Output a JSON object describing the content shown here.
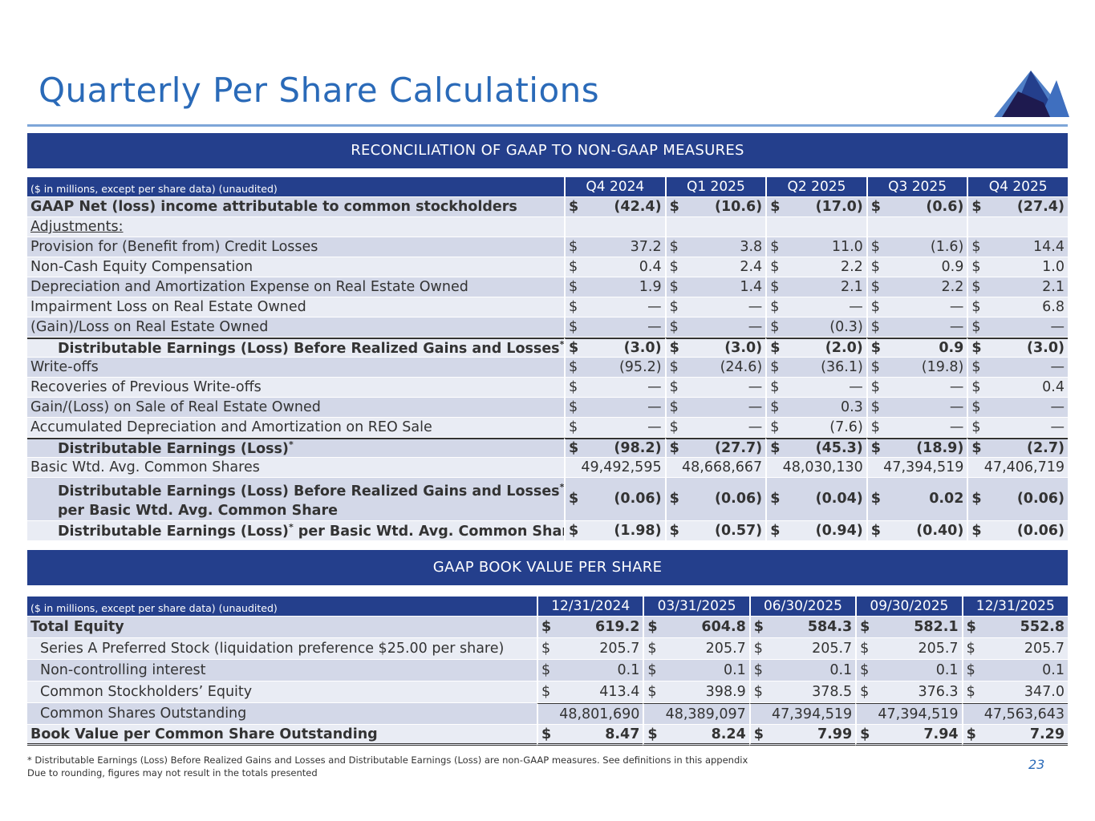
{
  "title": "Quarterly Per Share Calculations",
  "colors": {
    "title": "#2a6ab8",
    "band": "#243f8c",
    "row_dark": "#d3d8e8",
    "row_light": "#e9ecf4"
  },
  "section1": {
    "heading": "RECONCILIATION OF GAAP TO NON-GAAP MEASURES",
    "note": "($ in millions, except per share data) (unaudited)",
    "columns": [
      "Q4 2024",
      "Q1 2025",
      "Q2 2025",
      "Q3 2025",
      "Q4 2025"
    ],
    "rows": [
      {
        "label": "GAAP Net (loss) income attributable to common stockholders",
        "values": [
          "(42.4)",
          "(10.6)",
          "(17.0)",
          "(0.6)",
          "(27.4)"
        ],
        "bold": true
      },
      {
        "label": "Adjustments:",
        "values": [],
        "underline": true
      },
      {
        "label": "Provision for (Benefit from) Credit Losses",
        "values": [
          "37.2",
          "3.8",
          "11.0",
          "(1.6)",
          "14.4"
        ]
      },
      {
        "label": "Non-Cash Equity Compensation",
        "values": [
          "0.4",
          "2.4",
          "2.2",
          "0.9",
          "1.0"
        ]
      },
      {
        "label": "Depreciation and Amortization Expense on Real Estate Owned",
        "values": [
          "1.9",
          "1.4",
          "2.1",
          "2.2",
          "2.1"
        ]
      },
      {
        "label": "Impairment Loss on Real Estate Owned",
        "values": [
          "—",
          "—",
          "—",
          "—",
          "6.8"
        ]
      },
      {
        "label": "(Gain)/Loss on Real Estate Owned",
        "values": [
          "—",
          "—",
          "(0.3)",
          "—",
          "—"
        ]
      },
      {
        "label": "Distributable Earnings (Loss) Before Realized Gains and Losses",
        "sup": "*",
        "values": [
          "(3.0)",
          "(3.0)",
          "(2.0)",
          "0.9",
          "(3.0)"
        ],
        "bold": true,
        "indent": true,
        "top": true
      },
      {
        "label": "Write-offs",
        "values": [
          "(95.2)",
          "(24.6)",
          "(36.1)",
          "(19.8)",
          "—"
        ]
      },
      {
        "label": "Recoveries of Previous Write-offs",
        "values": [
          "—",
          "—",
          "—",
          "—",
          "0.4"
        ]
      },
      {
        "label": "Gain/(Loss) on Sale of Real Estate Owned",
        "values": [
          "—",
          "—",
          "0.3",
          "—",
          "—"
        ]
      },
      {
        "label": "Accumulated Depreciation and Amortization on REO Sale",
        "values": [
          "—",
          "—",
          "(7.6)",
          "—",
          "—"
        ]
      },
      {
        "label": "Distributable Earnings (Loss)",
        "sup": "*",
        "values": [
          "(98.2)",
          "(27.7)",
          "(45.3)",
          "(18.9)",
          "(2.7)"
        ],
        "bold": true,
        "indent": true,
        "top": true
      },
      {
        "label": "Basic Wtd. Avg. Common Shares",
        "values": [
          "49,492,595",
          "48,668,667",
          "48,030,130",
          "47,394,519",
          "47,406,719"
        ],
        "nodollar": true
      },
      {
        "label": "Distributable Earnings (Loss) Before Realized Gains and Losses",
        "sup": "*",
        "label2": "per Basic Wtd. Avg. Common Share",
        "values": [
          "(0.06)",
          "(0.06)",
          "(0.04)",
          "0.02",
          "(0.06)"
        ],
        "bold": true,
        "indent": true
      },
      {
        "label": "Distributable Earnings (Loss)",
        "sup": "*",
        "label_after": " per Basic Wtd. Avg. Common Share",
        "values": [
          "(1.98)",
          "(0.57)",
          "(0.94)",
          "(0.40)",
          "(0.06)"
        ],
        "bold": true,
        "indent": true
      }
    ]
  },
  "section2": {
    "heading": "GAAP BOOK VALUE PER SHARE",
    "note": "($ in millions, except per share data) (unaudited)",
    "columns": [
      "12/31/2024",
      "03/31/2025",
      "06/30/2025",
      "09/30/2025",
      "12/31/2025"
    ],
    "rows": [
      {
        "label": "Total Equity",
        "values": [
          "619.2",
          "604.8",
          "584.3",
          "582.1",
          "552.8"
        ],
        "bold": true
      },
      {
        "label": "Series A Preferred Stock (liquidation preference $25.00 per share)",
        "values": [
          "205.7",
          "205.7",
          "205.7",
          "205.7",
          "205.7"
        ],
        "sindent": true
      },
      {
        "label": "Non-controlling interest",
        "values": [
          "0.1",
          "0.1",
          "0.1",
          "0.1",
          "0.1"
        ],
        "sindent": true
      },
      {
        "label": "Common Stockholders’ Equity",
        "values": [
          "413.4",
          "398.9",
          "378.5",
          "376.3",
          "347.0"
        ],
        "sindent": true
      },
      {
        "label": "Common Shares Outstanding",
        "values": [
          "48,801,690",
          "48,389,097",
          "47,394,519",
          "47,394,519",
          "47,563,643"
        ],
        "sindent": true,
        "nodollar": true,
        "shares": true
      },
      {
        "label": "Book Value per Common Share Outstanding",
        "values": [
          "8.47",
          "8.24",
          "7.99",
          "7.94",
          "7.29"
        ],
        "bold": true,
        "dbl": true
      }
    ]
  },
  "currency_symbol": "$",
  "footnotes": [
    "* Distributable Earnings (Loss) Before Realized Gains and Losses and Distributable Earnings (Loss) are non-GAAP measures. See definitions in this appendix",
    "Due to rounding, figures may not result in the totals presented"
  ],
  "page_number": "23"
}
